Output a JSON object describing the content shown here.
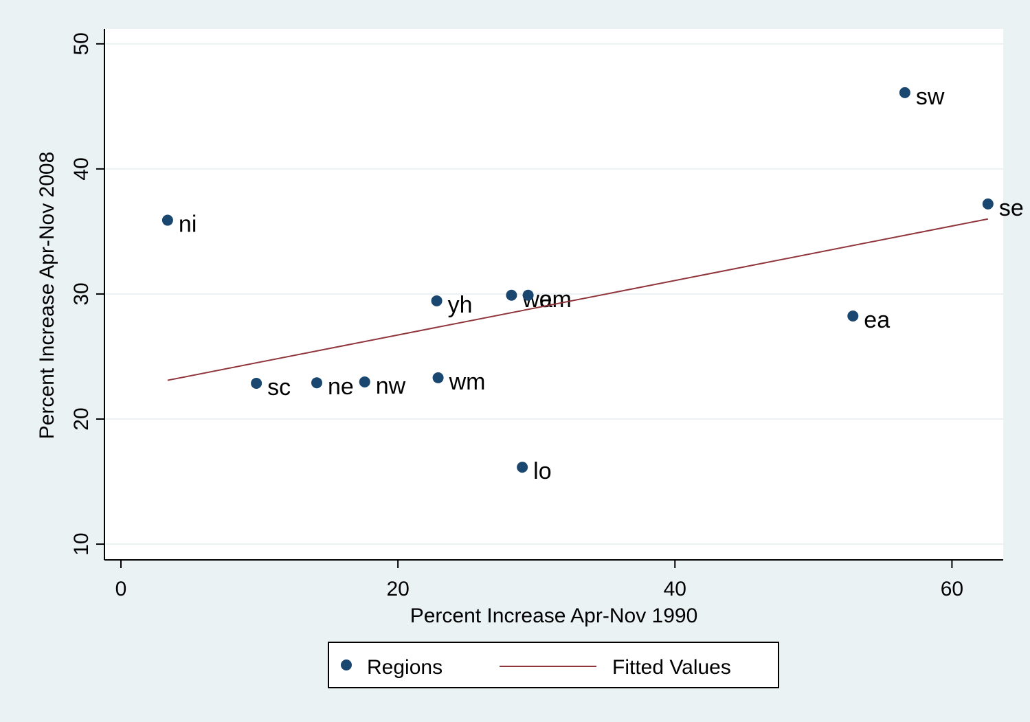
{
  "chart_data": {
    "type": "scatter",
    "xlabel": "Percent Increase Apr-Nov 1990",
    "ylabel": "Percent Increase Apr-Nov 2008",
    "xlim": [
      -1.19,
      63.7
    ],
    "ylim": [
      8.74,
      51.2
    ],
    "xticks": [
      0,
      20,
      40,
      60
    ],
    "yticks": [
      10,
      20,
      30,
      40,
      50
    ],
    "grid": true,
    "series": [
      {
        "name": "Regions",
        "color": "#1a476f",
        "labels": [
          "ni",
          "sc",
          "ne",
          "nw",
          "yh",
          "wm",
          "wa",
          "em",
          "lo",
          "ea",
          "sw",
          "se"
        ],
        "x": [
          3.37,
          9.78,
          14.14,
          17.6,
          22.8,
          22.9,
          28.2,
          29.4,
          28.98,
          52.85,
          56.6,
          62.6
        ],
        "values": [
          35.9,
          22.86,
          22.9,
          22.97,
          29.45,
          23.3,
          29.9,
          29.9,
          16.15,
          28.24,
          46.1,
          37.2
        ]
      },
      {
        "name": "Fitted Values",
        "type": "line",
        "color": "#90353b",
        "x": [
          3.37,
          62.6
        ],
        "values": [
          23.1,
          36.0
        ]
      }
    ]
  }
}
